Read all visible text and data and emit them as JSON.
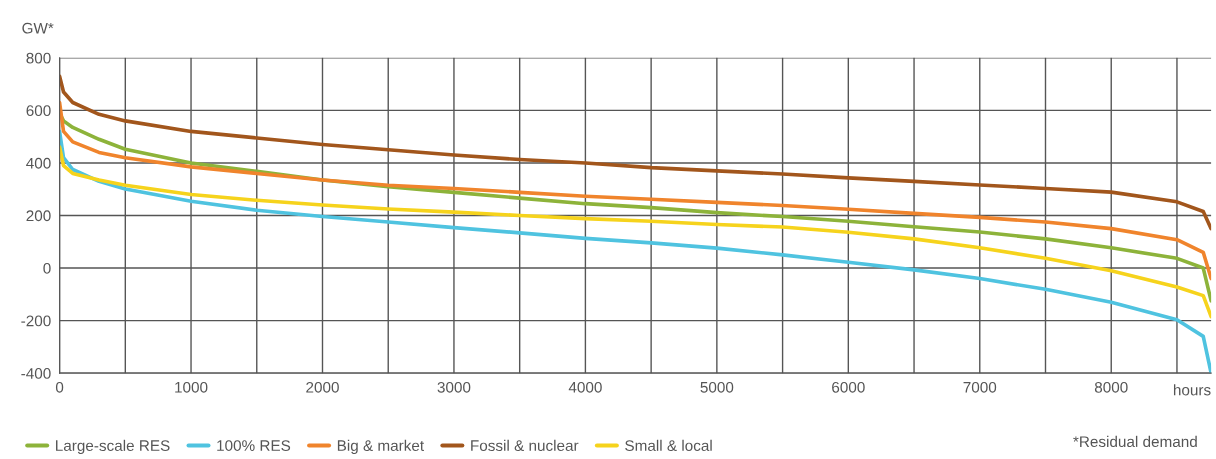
{
  "chart_data": {
    "type": "line",
    "ylabel": "GW*",
    "xlabel": "hours",
    "annotations": [
      "*Residual demand"
    ],
    "x": [
      0,
      30,
      100,
      300,
      500,
      1000,
      1500,
      2000,
      2500,
      3000,
      3500,
      4000,
      4500,
      5000,
      5500,
      6000,
      6500,
      7000,
      7500,
      8000,
      8500,
      8700,
      8760
    ],
    "series": [
      {
        "name": "Large-scale RES",
        "color": "#8db33a",
        "values": [
          590,
          560,
          535,
          490,
          452,
          400,
          368,
          335,
          310,
          288,
          266,
          245,
          230,
          211,
          196,
          178,
          157,
          137,
          111,
          77,
          37,
          0,
          -125
        ]
      },
      {
        "name": "100% RES",
        "color": "#4fc3e0",
        "values": [
          520,
          420,
          375,
          330,
          301,
          254,
          220,
          196,
          175,
          154,
          134,
          113,
          96,
          76,
          50,
          22,
          -7,
          -40,
          -81,
          -130,
          -197,
          -260,
          -400
        ]
      },
      {
        "name": "Big & market",
        "color": "#f0842c",
        "values": [
          630,
          520,
          480,
          440,
          420,
          385,
          360,
          335,
          315,
          303,
          288,
          273,
          262,
          250,
          238,
          224,
          208,
          193,
          175,
          150,
          108,
          60,
          -40
        ]
      },
      {
        "name": "Fossil & nuclear",
        "color": "#a2561c",
        "values": [
          730,
          670,
          630,
          585,
          560,
          520,
          495,
          470,
          450,
          430,
          413,
          400,
          382,
          370,
          358,
          343,
          330,
          316,
          303,
          289,
          252,
          215,
          150
        ]
      },
      {
        "name": "Small & local",
        "color": "#f6d31c",
        "values": [
          460,
          390,
          360,
          335,
          315,
          280,
          258,
          240,
          225,
          213,
          200,
          188,
          178,
          166,
          156,
          136,
          111,
          77,
          37,
          -10,
          -72,
          -105,
          -185
        ]
      }
    ],
    "xlim": [
      0,
      8760
    ],
    "xticks": [
      0,
      {
        "value": 500,
        "label": null
      },
      1000,
      {
        "value": 1500,
        "label": null
      },
      2000,
      {
        "value": 2500,
        "label": null
      },
      3000,
      {
        "value": 3500,
        "label": null
      },
      4000,
      {
        "value": 4500,
        "label": null
      },
      5000,
      {
        "value": 5500,
        "label": null
      },
      6000,
      {
        "value": 6500,
        "label": null
      },
      7000,
      {
        "value": 7500,
        "label": null
      },
      8000,
      {
        "value": 8500,
        "label": null
      }
    ],
    "ylim": [
      -400,
      800
    ],
    "yticks": [
      -400,
      -200,
      0,
      200,
      400,
      600,
      800
    ],
    "grid": true,
    "legend": "bottom",
    "marker": "none",
    "line_style": "solid"
  }
}
